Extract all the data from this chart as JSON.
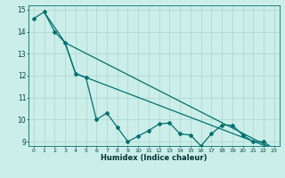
{
  "xlabel": "Humidex (Indice chaleur)",
  "bg_color": "#cceee8",
  "grid_color": "#aad4ce",
  "line_color": "#007070",
  "xlim": [
    -0.5,
    23.5
  ],
  "ylim": [
    8.8,
    15.2
  ],
  "yticks": [
    9,
    10,
    11,
    12,
    13,
    14,
    15
  ],
  "xticks": [
    0,
    1,
    2,
    3,
    4,
    5,
    6,
    7,
    8,
    9,
    10,
    11,
    12,
    13,
    14,
    15,
    16,
    17,
    18,
    19,
    20,
    21,
    22,
    23
  ],
  "series1": {
    "x": [
      0,
      1,
      2,
      3,
      4,
      5,
      6,
      7,
      8,
      9,
      10,
      11,
      12,
      13,
      14,
      15,
      16,
      17,
      18,
      19,
      20,
      21,
      22,
      23
    ],
    "y": [
      14.6,
      14.9,
      14.0,
      13.5,
      12.1,
      11.9,
      10.0,
      10.3,
      9.65,
      9.0,
      9.25,
      9.5,
      9.8,
      9.85,
      9.35,
      9.3,
      8.8,
      9.35,
      9.75,
      9.75,
      9.3,
      9.0,
      9.0,
      8.65
    ]
  },
  "series2": {
    "x": [
      1,
      3,
      23
    ],
    "y": [
      14.9,
      13.5,
      8.65
    ]
  },
  "series3": {
    "x": [
      3,
      4,
      23
    ],
    "y": [
      13.5,
      12.1,
      8.65
    ]
  },
  "markersize": 2.0,
  "linewidth": 0.9
}
